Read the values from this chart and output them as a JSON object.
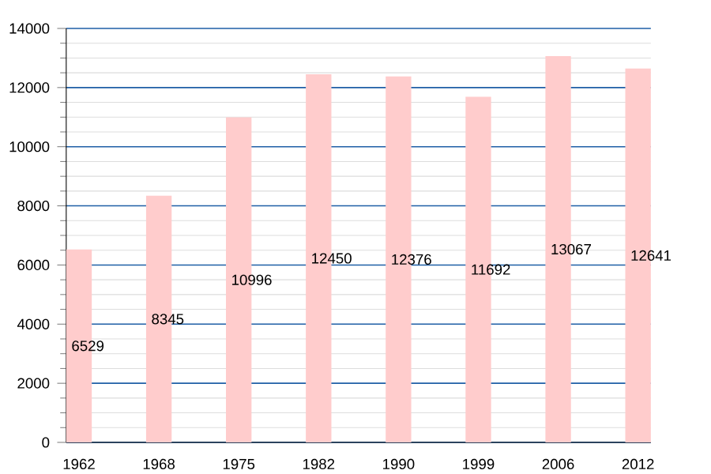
{
  "chart_data": {
    "type": "bar",
    "categories": [
      "1962",
      "1968",
      "1975",
      "1982",
      "1990",
      "1999",
      "2006",
      "2012"
    ],
    "values": [
      6529,
      8345,
      10996,
      12450,
      12376,
      11692,
      13067,
      12641
    ],
    "color": "#ffcccc",
    "ylim": [
      0,
      14000
    ],
    "yticks": [
      0,
      2000,
      4000,
      6000,
      8000,
      10000,
      12000,
      14000
    ],
    "grid": "y",
    "data_labels": true
  }
}
